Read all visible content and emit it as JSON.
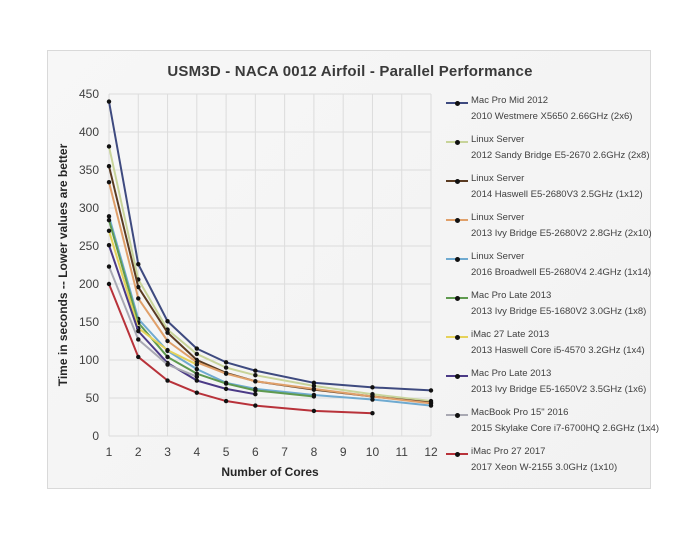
{
  "chart_data": {
    "type": "line",
    "title": "USM3D - NACA 0012 Airfoil - Parallel Performance",
    "xlabel": "Number of Cores",
    "ylabel": "Time in seconds -- Lower values are better",
    "xlim": [
      1,
      12
    ],
    "ylim": [
      0,
      450
    ],
    "x_ticks": [
      "1",
      "2",
      "3",
      "4",
      "5",
      "6",
      "7",
      "8",
      "9",
      "10",
      "11",
      "12"
    ],
    "y_ticks": [
      "0",
      "50",
      "100",
      "150",
      "200",
      "250",
      "300",
      "350",
      "400",
      "450"
    ],
    "grid": true,
    "legend_position": "right",
    "series": [
      {
        "name": "Mac Pro Mid 2012",
        "detail": "2010 Westmere X5650 2.66GHz (2x6)",
        "color": "#3e4a7f",
        "x": [
          1,
          2,
          3,
          4,
          5,
          6,
          8,
          10,
          12
        ],
        "values": [
          440,
          226,
          151,
          115,
          97,
          86,
          70,
          64,
          60
        ]
      },
      {
        "name": "Linux Server",
        "detail": "2012 Sandy Bridge E5-2670 2.6GHz (2x8)",
        "color": "#c8d49a",
        "x": [
          1,
          2,
          3,
          4,
          5,
          6,
          8,
          10,
          12
        ],
        "values": [
          381,
          206,
          140,
          108,
          90,
          80,
          66,
          55,
          46
        ]
      },
      {
        "name": "Linux Server",
        "detail": "2014 Haswell E5-2680V3 2.5GHz (1x12)",
        "color": "#5a3b22",
        "x": [
          1,
          2,
          3,
          4,
          5,
          6,
          8,
          10,
          12
        ],
        "values": [
          355,
          196,
          136,
          100,
          83,
          72,
          61,
          52,
          44
        ]
      },
      {
        "name": "Linux Server",
        "detail": "2013 Ivy Bridge E5-2680V2 2.8GHz (2x10)",
        "color": "#e0a06a",
        "x": [
          1,
          2,
          3,
          4,
          5,
          6,
          8,
          10,
          12
        ],
        "values": [
          334,
          181,
          125,
          97,
          82,
          72,
          62,
          52,
          43
        ]
      },
      {
        "name": "Linux Server",
        "detail": "2016 Broadwell E5-2680V4 2.4GHz (1x14)",
        "color": "#6faad0",
        "x": [
          1,
          2,
          3,
          4,
          5,
          6,
          8,
          10,
          12
        ],
        "values": [
          289,
          154,
          112,
          88,
          70,
          62,
          54,
          48,
          40
        ]
      },
      {
        "name": "Mac Pro Late 2013",
        "detail": "2013 Ivy Bridge E5-1680V2 3.0GHz (1x8)",
        "color": "#5f9a4f",
        "x": [
          1,
          2,
          3,
          4,
          5,
          6,
          8
        ],
        "values": [
          284,
          149,
          104,
          82,
          69,
          60,
          52
        ]
      },
      {
        "name": "iMac 27 Late 2013",
        "detail": "2013 Haswell Core i5-4570 3.2GHz (1x4)",
        "color": "#e6d25a",
        "x": [
          1,
          2,
          3,
          4
        ],
        "values": [
          270,
          142,
          113,
          94
        ]
      },
      {
        "name": "Mac Pro Late 2013",
        "detail": "2013 Ivy Bridge E5-1650V2 3.5GHz (1x6)",
        "color": "#4b3a86",
        "x": [
          1,
          2,
          3,
          4,
          5,
          6
        ],
        "values": [
          251,
          138,
          96,
          73,
          62,
          55
        ]
      },
      {
        "name": "MacBook Pro 15\" 2016",
        "detail": "2015 Skylake Core i7-6700HQ 2.6GHz (1x4)",
        "color": "#a9a9b3",
        "x": [
          1,
          2,
          3,
          4
        ],
        "values": [
          223,
          127,
          94,
          78
        ]
      },
      {
        "name": "iMac Pro 27 2017",
        "detail": "2017 Xeon W-2155 3.0GHz (1x10)",
        "color": "#b8323a",
        "x": [
          1,
          2,
          3,
          4,
          5,
          6,
          8,
          10
        ],
        "values": [
          200,
          104,
          73,
          57,
          46,
          40,
          33,
          30
        ]
      }
    ]
  }
}
